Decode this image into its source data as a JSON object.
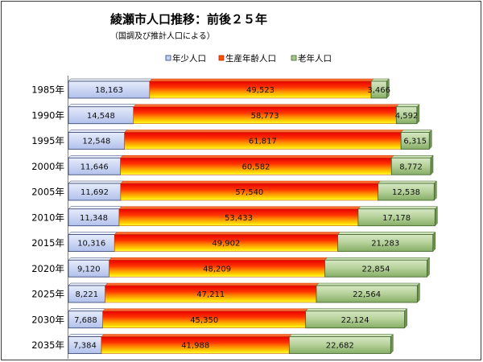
{
  "chart_data": {
    "type": "bar",
    "orientation": "horizontal",
    "stacked": true,
    "title": "綾瀬市人口推移：前後２５年",
    "subtitle": "（国調及び推計人口による）",
    "legend": "top",
    "grid": false,
    "data_labels": true,
    "categories": [
      "1985年",
      "1990年",
      "1995年",
      "2000年",
      "2005年",
      "2010年",
      "2015年",
      "2020年",
      "2025年",
      "2030年",
      "2035年"
    ],
    "series": [
      {
        "name": "年少人口",
        "color": "#c6d2f2",
        "values": [
          18163,
          14548,
          12548,
          11646,
          11692,
          11348,
          10316,
          9120,
          8221,
          7688,
          7384
        ]
      },
      {
        "name": "生産年齢人口",
        "color": "#ff5000",
        "values": [
          49523,
          58773,
          61817,
          60582,
          57540,
          53433,
          49902,
          48209,
          47211,
          45350,
          41988
        ]
      },
      {
        "name": "老年人口",
        "color": "#a6c78a",
        "values": [
          3466,
          4592,
          6315,
          8772,
          12538,
          17178,
          21283,
          22854,
          22564,
          22124,
          22682
        ]
      }
    ]
  }
}
